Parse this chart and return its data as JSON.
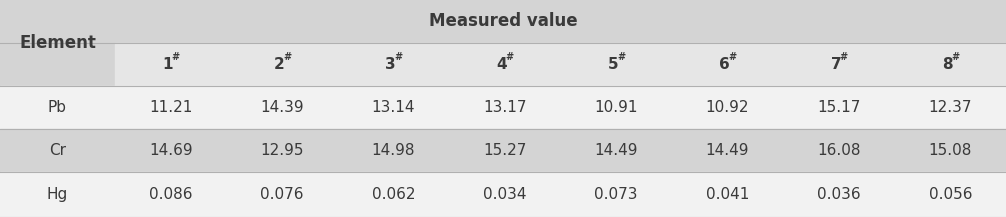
{
  "title": "Measured value",
  "col_numbers": [
    "1",
    "2",
    "3",
    "4",
    "5",
    "6",
    "7",
    "8"
  ],
  "row_labels": [
    "Pb",
    "Cr",
    "Hg"
  ],
  "data": [
    [
      "11.21",
      "14.39",
      "13.14",
      "13.17",
      "10.91",
      "10.92",
      "15.17",
      "12.37"
    ],
    [
      "14.69",
      "12.95",
      "14.98",
      "15.27",
      "14.49",
      "14.49",
      "16.08",
      "15.08"
    ],
    [
      "0.086",
      "0.076",
      "0.062",
      "0.034",
      "0.073",
      "0.041",
      "0.036",
      "0.056"
    ]
  ],
  "bg_gray": "#d4d4d4",
  "bg_white": "#f0f0f0",
  "bg_header_data": "#e8e8e8",
  "text_color": "#3a3a3a",
  "line_color": "#b0b0b0",
  "title_fontsize": 12,
  "header_fontsize": 11,
  "cell_fontsize": 11,
  "element_fontsize": 12
}
